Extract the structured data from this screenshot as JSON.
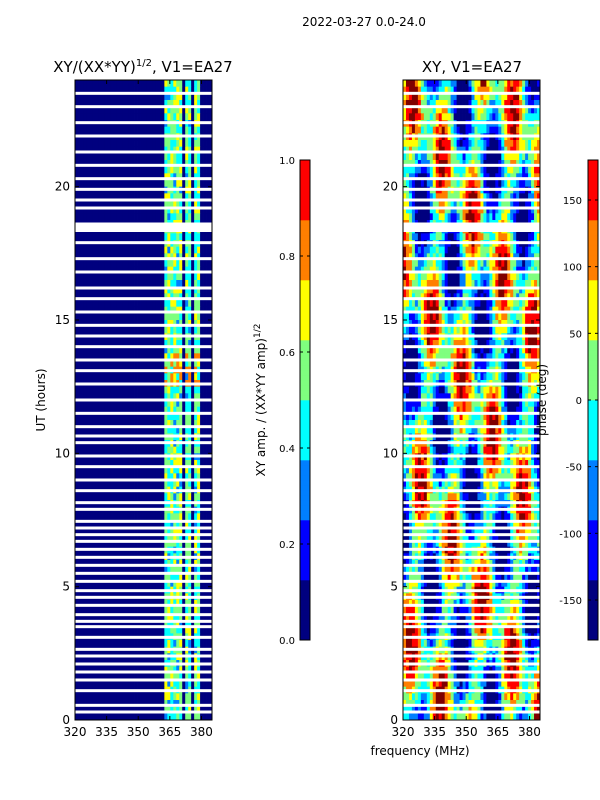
{
  "chart_data": [
    {
      "type": "heatmap",
      "title": "XY/(XX*YY)",
      "title_superscript": "1/2",
      "title_suffix": ", V1=EA27",
      "xlabel": "",
      "ylabel": "UT (hours)",
      "xlim": [
        320,
        385
      ],
      "ylim": [
        0,
        24
      ],
      "xticks": [
        "320",
        "335",
        "350",
        "365",
        "380"
      ],
      "yticks": [
        "0",
        "5",
        "10",
        "15",
        "20"
      ],
      "bright_channels_mhz": [
        [
          362,
          366
        ],
        [
          367,
          371
        ],
        [
          372,
          375
        ],
        [
          377,
          380
        ]
      ],
      "colorbar": {
        "label": "XY amp. / (XX*YY amp)",
        "label_superscript": "1/2",
        "range": [
          0.0,
          1.0
        ],
        "ticks": [
          "0.0",
          "0.2",
          "0.4",
          "0.6",
          "0.8",
          "1.0"
        ]
      }
    },
    {
      "type": "heatmap",
      "title": "XY, V1=EA27",
      "xlabel": "frequency (MHz)",
      "ylabel": "",
      "xlim": [
        320,
        385
      ],
      "ylim": [
        0,
        24
      ],
      "xticks": [
        "320",
        "335",
        "350",
        "365",
        "380"
      ],
      "yticks": [
        "0",
        "5",
        "10",
        "15",
        "20"
      ],
      "colorbar": {
        "label": "phase (deg)",
        "range": [
          -180,
          180
        ],
        "ticks": [
          "-150",
          "-100",
          "-50",
          "0",
          "50",
          "100",
          "150"
        ]
      }
    }
  ],
  "suptitle": "2022-03-27 0.0-24.0",
  "colormap": [
    "#00007f",
    "#0000ff",
    "#007fff",
    "#00ffff",
    "#7fff7f",
    "#ffff00",
    "#ff7f00",
    "#ff0000",
    "#7f0000"
  ],
  "flagged_hours": [
    0.3,
    0.55,
    1.1,
    1.5,
    1.8,
    2.1,
    2.4,
    2.65,
    3.1,
    3.5,
    3.7,
    3.95,
    4.3,
    4.6,
    4.85,
    5.2,
    5.5,
    5.8,
    6.1,
    6.4,
    6.7,
    6.95,
    7.2,
    7.45,
    7.9,
    8.15,
    8.6,
    9.0,
    9.5,
    9.9,
    10.4,
    10.65,
    11.0,
    11.5,
    12.0,
    12.6,
    13.1,
    13.5,
    14.0,
    14.4,
    14.8,
    15.3,
    15.8,
    16.2,
    16.8,
    17.3,
    17.9,
    18.45,
    18.6,
    19.2,
    19.5,
    19.9,
    20.3,
    20.8,
    21.3,
    21.9,
    22.4,
    23.0,
    23.5
  ]
}
